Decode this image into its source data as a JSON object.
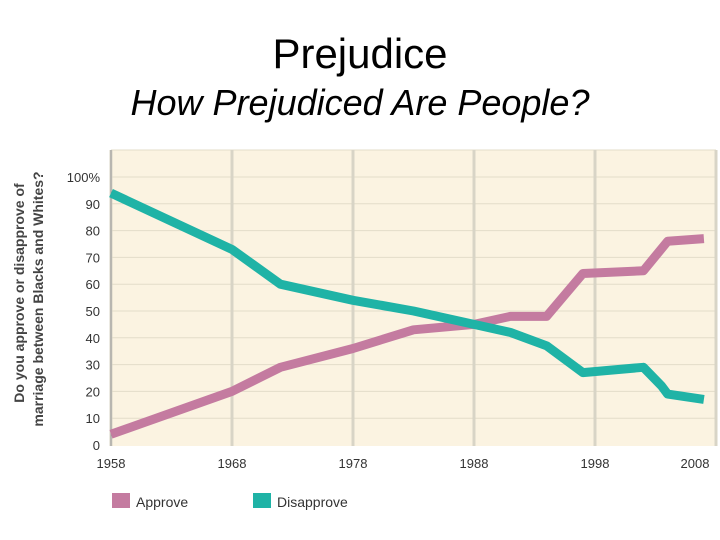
{
  "slide": {
    "title": "Prejudice",
    "subtitle": "How Prejudiced Are People?"
  },
  "chart_data": {
    "type": "line",
    "ylabel_line1": "Do you approve  or disapprove of",
    "ylabel_line2": "marriage between Blacks and Whites?",
    "xlim": [
      1958,
      2008
    ],
    "ylim": [
      0,
      100
    ],
    "x_ticks": [
      "1958",
      "1968",
      "1978",
      "1988",
      "1998",
      "2008"
    ],
    "y_ticks": [
      "0",
      "10",
      "20",
      "30",
      "40",
      "50",
      "60",
      "70",
      "80",
      "90",
      "100%"
    ],
    "grid": true,
    "legend_position": "bottom-left",
    "background_color": "#fbf3e1",
    "series": [
      {
        "name": "Approve",
        "color": "#c47ba0",
        "points": [
          [
            1958,
            4
          ],
          [
            1968,
            20
          ],
          [
            1972,
            29
          ],
          [
            1978,
            36
          ],
          [
            1983,
            43
          ],
          [
            1988,
            45
          ],
          [
            1991,
            48
          ],
          [
            1994,
            48
          ],
          [
            1997,
            64
          ],
          [
            2002,
            65
          ],
          [
            2004,
            76
          ],
          [
            2007,
            77
          ]
        ]
      },
      {
        "name": "Disapprove",
        "color": "#1fb3a6",
        "points": [
          [
            1958,
            94
          ],
          [
            1968,
            73
          ],
          [
            1972,
            60
          ],
          [
            1978,
            54
          ],
          [
            1983,
            50
          ],
          [
            1988,
            45
          ],
          [
            1991,
            42
          ],
          [
            1994,
            37
          ],
          [
            1997,
            27
          ],
          [
            2002,
            29
          ],
          [
            2003.5,
            22
          ],
          [
            2004,
            19
          ],
          [
            2007,
            17
          ]
        ]
      }
    ]
  }
}
